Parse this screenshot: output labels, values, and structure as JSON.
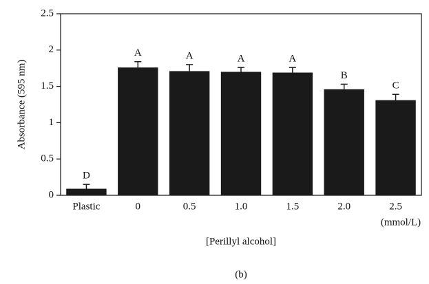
{
  "chart_data": {
    "type": "bar",
    "categories": [
      "Plastic",
      "0",
      "0.5",
      "1.0",
      "1.5",
      "2.0",
      "2.5"
    ],
    "values": [
      0.09,
      1.76,
      1.71,
      1.7,
      1.69,
      1.46,
      1.31
    ],
    "errors": [
      0.06,
      0.08,
      0.09,
      0.06,
      0.07,
      0.07,
      0.08
    ],
    "annotations": [
      "D",
      "A",
      "A",
      "A",
      "A",
      "B",
      "C"
    ],
    "color": "#1a1a1a",
    "ylim": [
      0,
      2.5
    ],
    "yticks": [
      0,
      0.5,
      1,
      1.5,
      2,
      2.5
    ],
    "ylabel": "Absorbance (595 nm)",
    "xlabel": "[Perillyl alcohol]",
    "x_unit": "(mmol/L)",
    "caption": "(b)"
  }
}
